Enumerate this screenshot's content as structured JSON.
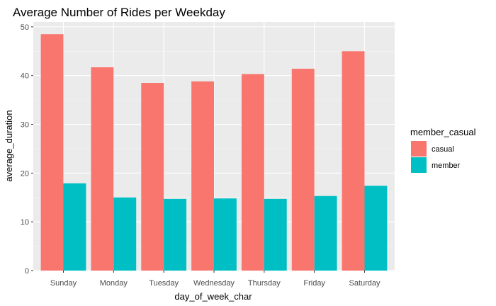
{
  "chart_data": {
    "type": "bar",
    "title": "Average Number of Rides per Weekday",
    "xlabel": "day_of_week_char",
    "ylabel": "average_duration",
    "categories": [
      "Sunday",
      "Monday",
      "Tuesday",
      "Wednesday",
      "Thursday",
      "Friday",
      "Saturday"
    ],
    "series": [
      {
        "name": "casual",
        "color": "#F8766D",
        "values": [
          48.5,
          41.7,
          38.5,
          38.8,
          40.3,
          41.4,
          45.0
        ]
      },
      {
        "name": "member",
        "color": "#00BFC4",
        "values": [
          17.9,
          15.0,
          14.7,
          14.8,
          14.7,
          15.3,
          17.4
        ]
      }
    ],
    "ylim": [
      0,
      51
    ],
    "yticks": [
      0,
      10,
      20,
      30,
      40,
      50
    ],
    "grid": true,
    "panel_background": "#EBEBEB",
    "legend": {
      "title": "member_casual",
      "position": "right"
    }
  }
}
